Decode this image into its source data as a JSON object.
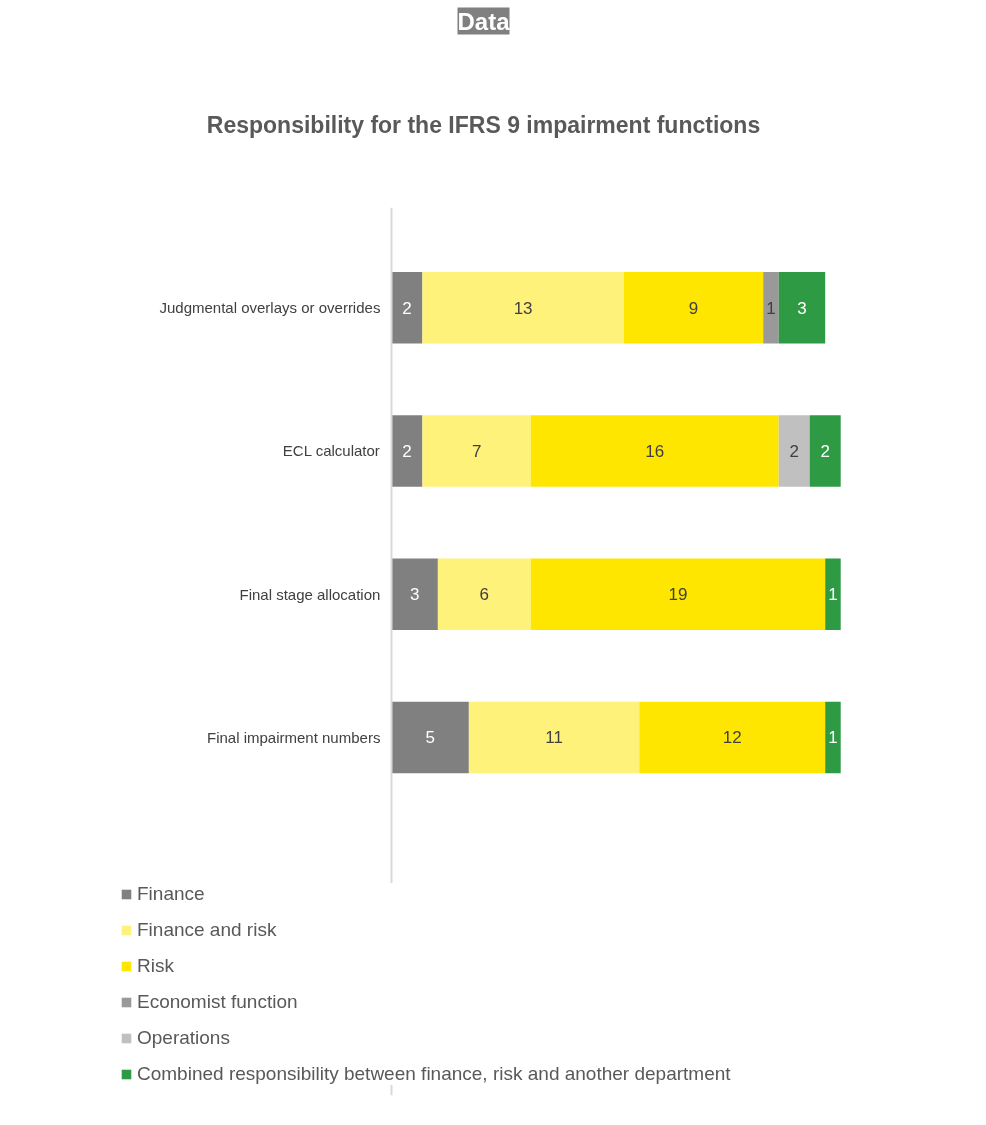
{
  "chart_data": {
    "type": "bar",
    "orientation": "horizontal",
    "stacked": true,
    "data_labels": true,
    "legend": "bottom",
    "grid": false,
    "title": "Responsibility for the IFRS 9 impairment functions",
    "annotations": [
      "Data"
    ],
    "categories": [
      "Judgmental overlays or overrides",
      "ECL calculator",
      "Final stage allocation",
      "Final impairment numbers"
    ],
    "series": [
      {
        "name": "Finance",
        "color": "#808080",
        "values": [
          2,
          2,
          3,
          5
        ]
      },
      {
        "name": "Finance and risk",
        "color": "#fff27a",
        "values": [
          13,
          7,
          6,
          11
        ]
      },
      {
        "name": "Risk",
        "color": "#ffe600",
        "values": [
          9,
          16,
          19,
          12
        ]
      },
      {
        "name": "Economist function",
        "color": "#999999",
        "values": [
          1,
          null,
          null,
          null
        ]
      },
      {
        "name": "Operations",
        "color": "#c0c0c0",
        "values": [
          null,
          2,
          null,
          null
        ]
      },
      {
        "name": "Combined responsibility between finance, risk and another department",
        "color": "#2e9a44",
        "values": [
          3,
          2,
          1,
          1
        ]
      }
    ]
  }
}
